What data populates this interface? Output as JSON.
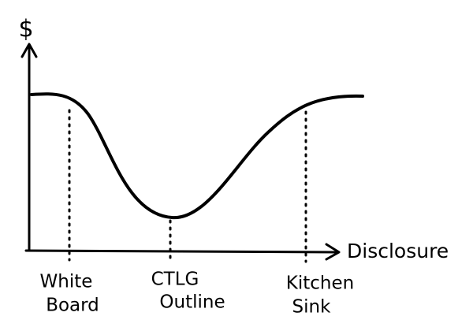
{
  "y_axis_label": "$",
  "x_axis_label": "Disclosure",
  "markers": [
    {
      "lines": [
        "White",
        "Board"
      ]
    },
    {
      "lines": [
        "CTLG",
        "Outline"
      ]
    },
    {
      "lines": [
        "Kitchen",
        "Sink"
      ]
    }
  ]
}
